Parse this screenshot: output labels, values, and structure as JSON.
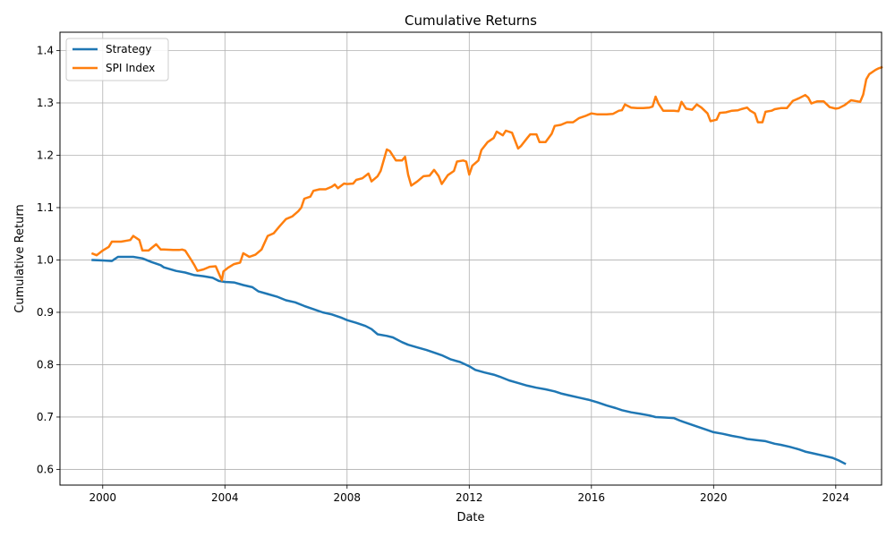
{
  "chart_data": {
    "type": "line",
    "title": "Cumulative Returns",
    "xlabel": "Date",
    "ylabel": "Cumulative Return",
    "xlim": [
      1998.6,
      2025.5
    ],
    "ylim": [
      0.57,
      1.435
    ],
    "x_ticks": [
      2000,
      2004,
      2008,
      2012,
      2016,
      2020,
      2024
    ],
    "y_ticks": [
      0.6,
      0.7,
      0.8,
      0.9,
      1.0,
      1.1,
      1.2,
      1.3,
      1.4
    ],
    "x_tick_labels": [
      "2000",
      "2004",
      "2008",
      "2012",
      "2016",
      "2020",
      "2024"
    ],
    "y_tick_labels": [
      "0.6",
      "0.7",
      "0.8",
      "0.9",
      "1.0",
      "1.1",
      "1.2",
      "1.3",
      "1.4"
    ],
    "grid": true,
    "legend_position": "top-left",
    "series": [
      {
        "name": "Strategy",
        "color": "#1f77b4",
        "points": [
          [
            1999.67,
            1.0
          ],
          [
            2000.0,
            0.999
          ],
          [
            2000.3,
            0.998
          ],
          [
            2000.5,
            1.006
          ],
          [
            2000.8,
            1.006
          ],
          [
            2001.0,
            1.006
          ],
          [
            2001.3,
            1.003
          ],
          [
            2001.6,
            0.996
          ],
          [
            2001.9,
            0.99
          ],
          [
            2002.0,
            0.986
          ],
          [
            2002.4,
            0.979
          ],
          [
            2002.7,
            0.976
          ],
          [
            2003.0,
            0.971
          ],
          [
            2003.3,
            0.969
          ],
          [
            2003.6,
            0.966
          ],
          [
            2003.8,
            0.96
          ],
          [
            2004.0,
            0.958
          ],
          [
            2004.3,
            0.957
          ],
          [
            2004.6,
            0.952
          ],
          [
            2004.9,
            0.948
          ],
          [
            2005.1,
            0.94
          ],
          [
            2005.4,
            0.935
          ],
          [
            2005.7,
            0.93
          ],
          [
            2006.0,
            0.923
          ],
          [
            2006.3,
            0.919
          ],
          [
            2006.6,
            0.912
          ],
          [
            2006.9,
            0.906
          ],
          [
            2007.2,
            0.9
          ],
          [
            2007.5,
            0.896
          ],
          [
            2007.8,
            0.89
          ],
          [
            2008.0,
            0.885
          ],
          [
            2008.3,
            0.88
          ],
          [
            2008.6,
            0.874
          ],
          [
            2008.8,
            0.868
          ],
          [
            2009.0,
            0.858
          ],
          [
            2009.3,
            0.855
          ],
          [
            2009.5,
            0.852
          ],
          [
            2009.8,
            0.843
          ],
          [
            2010.0,
            0.838
          ],
          [
            2010.3,
            0.833
          ],
          [
            2010.6,
            0.828
          ],
          [
            2010.9,
            0.822
          ],
          [
            2011.1,
            0.818
          ],
          [
            2011.4,
            0.81
          ],
          [
            2011.7,
            0.805
          ],
          [
            2012.0,
            0.797
          ],
          [
            2012.2,
            0.79
          ],
          [
            2012.5,
            0.785
          ],
          [
            2012.8,
            0.781
          ],
          [
            2013.0,
            0.777
          ],
          [
            2013.3,
            0.77
          ],
          [
            2013.6,
            0.765
          ],
          [
            2013.9,
            0.76
          ],
          [
            2014.2,
            0.756
          ],
          [
            2014.5,
            0.753
          ],
          [
            2014.8,
            0.749
          ],
          [
            2015.0,
            0.745
          ],
          [
            2015.3,
            0.741
          ],
          [
            2015.6,
            0.737
          ],
          [
            2015.9,
            0.733
          ],
          [
            2016.2,
            0.728
          ],
          [
            2016.5,
            0.722
          ],
          [
            2016.8,
            0.717
          ],
          [
            2017.0,
            0.713
          ],
          [
            2017.3,
            0.709
          ],
          [
            2017.6,
            0.706
          ],
          [
            2017.9,
            0.703
          ],
          [
            2018.1,
            0.7
          ],
          [
            2018.4,
            0.699
          ],
          [
            2018.7,
            0.698
          ],
          [
            2018.9,
            0.693
          ],
          [
            2019.2,
            0.687
          ],
          [
            2019.5,
            0.681
          ],
          [
            2019.8,
            0.675
          ],
          [
            2020.0,
            0.671
          ],
          [
            2020.3,
            0.668
          ],
          [
            2020.6,
            0.664
          ],
          [
            2020.9,
            0.661
          ],
          [
            2021.1,
            0.658
          ],
          [
            2021.4,
            0.656
          ],
          [
            2021.7,
            0.654
          ],
          [
            2022.0,
            0.649
          ],
          [
            2022.2,
            0.647
          ],
          [
            2022.5,
            0.643
          ],
          [
            2022.8,
            0.638
          ],
          [
            2023.0,
            0.634
          ],
          [
            2023.3,
            0.63
          ],
          [
            2023.6,
            0.626
          ],
          [
            2023.9,
            0.622
          ],
          [
            2024.1,
            0.617
          ],
          [
            2024.3,
            0.611
          ]
        ]
      },
      {
        "name": "SPI Index",
        "color": "#ff7f0e",
        "points": [
          [
            1999.67,
            1.012
          ],
          [
            1999.8,
            1.009
          ],
          [
            2000.0,
            1.018
          ],
          [
            2000.2,
            1.025
          ],
          [
            2000.3,
            1.035
          ],
          [
            2000.6,
            1.035
          ],
          [
            2000.8,
            1.037
          ],
          [
            2000.9,
            1.038
          ],
          [
            2001.0,
            1.046
          ],
          [
            2001.2,
            1.038
          ],
          [
            2001.3,
            1.018
          ],
          [
            2001.5,
            1.018
          ],
          [
            2001.75,
            1.03
          ],
          [
            2001.9,
            1.02
          ],
          [
            2002.0,
            1.02
          ],
          [
            2002.3,
            1.019
          ],
          [
            2002.5,
            1.019
          ],
          [
            2002.6,
            1.02
          ],
          [
            2002.7,
            1.018
          ],
          [
            2002.9,
            1.0
          ],
          [
            2003.0,
            0.99
          ],
          [
            2003.1,
            0.979
          ],
          [
            2003.3,
            0.982
          ],
          [
            2003.5,
            0.987
          ],
          [
            2003.7,
            0.988
          ],
          [
            2003.9,
            0.961
          ],
          [
            2003.95,
            0.978
          ],
          [
            2004.1,
            0.985
          ],
          [
            2004.3,
            0.992
          ],
          [
            2004.5,
            0.995
          ],
          [
            2004.6,
            1.013
          ],
          [
            2004.8,
            1.006
          ],
          [
            2005.0,
            1.01
          ],
          [
            2005.2,
            1.02
          ],
          [
            2005.4,
            1.046
          ],
          [
            2005.6,
            1.051
          ],
          [
            2005.8,
            1.065
          ],
          [
            2006.0,
            1.078
          ],
          [
            2006.2,
            1.083
          ],
          [
            2006.4,
            1.093
          ],
          [
            2006.5,
            1.1
          ],
          [
            2006.6,
            1.117
          ],
          [
            2006.8,
            1.121
          ],
          [
            2006.9,
            1.132
          ],
          [
            2007.1,
            1.135
          ],
          [
            2007.3,
            1.135
          ],
          [
            2007.5,
            1.14
          ],
          [
            2007.6,
            1.144
          ],
          [
            2007.7,
            1.137
          ],
          [
            2007.9,
            1.146
          ],
          [
            2008.0,
            1.145
          ],
          [
            2008.2,
            1.146
          ],
          [
            2008.3,
            1.153
          ],
          [
            2008.5,
            1.156
          ],
          [
            2008.7,
            1.165
          ],
          [
            2008.8,
            1.15
          ],
          [
            2009.0,
            1.16
          ],
          [
            2009.1,
            1.17
          ],
          [
            2009.3,
            1.211
          ],
          [
            2009.4,
            1.208
          ],
          [
            2009.6,
            1.19
          ],
          [
            2009.8,
            1.19
          ],
          [
            2009.9,
            1.197
          ],
          [
            2010.0,
            1.163
          ],
          [
            2010.1,
            1.142
          ],
          [
            2010.3,
            1.15
          ],
          [
            2010.5,
            1.16
          ],
          [
            2010.7,
            1.161
          ],
          [
            2010.85,
            1.172
          ],
          [
            2011.0,
            1.16
          ],
          [
            2011.1,
            1.145
          ],
          [
            2011.3,
            1.162
          ],
          [
            2011.5,
            1.17
          ],
          [
            2011.6,
            1.188
          ],
          [
            2011.8,
            1.19
          ],
          [
            2011.9,
            1.188
          ],
          [
            2012.0,
            1.163
          ],
          [
            2012.1,
            1.18
          ],
          [
            2012.3,
            1.19
          ],
          [
            2012.4,
            1.21
          ],
          [
            2012.6,
            1.225
          ],
          [
            2012.8,
            1.233
          ],
          [
            2012.9,
            1.245
          ],
          [
            2013.1,
            1.238
          ],
          [
            2013.2,
            1.247
          ],
          [
            2013.4,
            1.243
          ],
          [
            2013.6,
            1.213
          ],
          [
            2013.7,
            1.218
          ],
          [
            2013.9,
            1.233
          ],
          [
            2014.0,
            1.24
          ],
          [
            2014.2,
            1.24
          ],
          [
            2014.3,
            1.225
          ],
          [
            2014.5,
            1.225
          ],
          [
            2014.7,
            1.241
          ],
          [
            2014.8,
            1.256
          ],
          [
            2015.0,
            1.258
          ],
          [
            2015.2,
            1.263
          ],
          [
            2015.4,
            1.263
          ],
          [
            2015.6,
            1.271
          ],
          [
            2015.8,
            1.275
          ],
          [
            2016.0,
            1.28
          ],
          [
            2016.2,
            1.278
          ],
          [
            2016.5,
            1.278
          ],
          [
            2016.7,
            1.279
          ],
          [
            2016.9,
            1.285
          ],
          [
            2017.0,
            1.286
          ],
          [
            2017.1,
            1.297
          ],
          [
            2017.3,
            1.291
          ],
          [
            2017.5,
            1.29
          ],
          [
            2017.7,
            1.29
          ],
          [
            2017.9,
            1.291
          ],
          [
            2018.0,
            1.293
          ],
          [
            2018.1,
            1.312
          ],
          [
            2018.2,
            1.298
          ],
          [
            2018.35,
            1.285
          ],
          [
            2018.5,
            1.285
          ],
          [
            2018.7,
            1.285
          ],
          [
            2018.85,
            1.284
          ],
          [
            2018.95,
            1.302
          ],
          [
            2019.1,
            1.289
          ],
          [
            2019.3,
            1.287
          ],
          [
            2019.45,
            1.297
          ],
          [
            2019.6,
            1.291
          ],
          [
            2019.8,
            1.28
          ],
          [
            2019.9,
            1.265
          ],
          [
            2020.1,
            1.268
          ],
          [
            2020.2,
            1.281
          ],
          [
            2020.4,
            1.282
          ],
          [
            2020.6,
            1.285
          ],
          [
            2020.8,
            1.286
          ],
          [
            2020.9,
            1.288
          ],
          [
            2021.1,
            1.291
          ],
          [
            2021.2,
            1.285
          ],
          [
            2021.35,
            1.28
          ],
          [
            2021.45,
            1.263
          ],
          [
            2021.6,
            1.263
          ],
          [
            2021.7,
            1.283
          ],
          [
            2021.9,
            1.285
          ],
          [
            2022.0,
            1.288
          ],
          [
            2022.2,
            1.29
          ],
          [
            2022.4,
            1.29
          ],
          [
            2022.6,
            1.304
          ],
          [
            2022.8,
            1.309
          ],
          [
            2023.0,
            1.315
          ],
          [
            2023.1,
            1.31
          ],
          [
            2023.2,
            1.299
          ],
          [
            2023.4,
            1.303
          ],
          [
            2023.6,
            1.303
          ],
          [
            2023.8,
            1.292
          ],
          [
            2024.0,
            1.289
          ],
          [
            2024.1,
            1.29
          ],
          [
            2024.3,
            1.296
          ],
          [
            2024.5,
            1.305
          ],
          [
            2024.7,
            1.303
          ],
          [
            2024.8,
            1.302
          ],
          [
            2024.9,
            1.316
          ],
          [
            2025.0,
            1.345
          ],
          [
            2025.1,
            1.355
          ],
          [
            2025.3,
            1.363
          ],
          [
            2025.4,
            1.366
          ],
          [
            2025.5,
            1.368
          ]
        ]
      }
    ]
  }
}
